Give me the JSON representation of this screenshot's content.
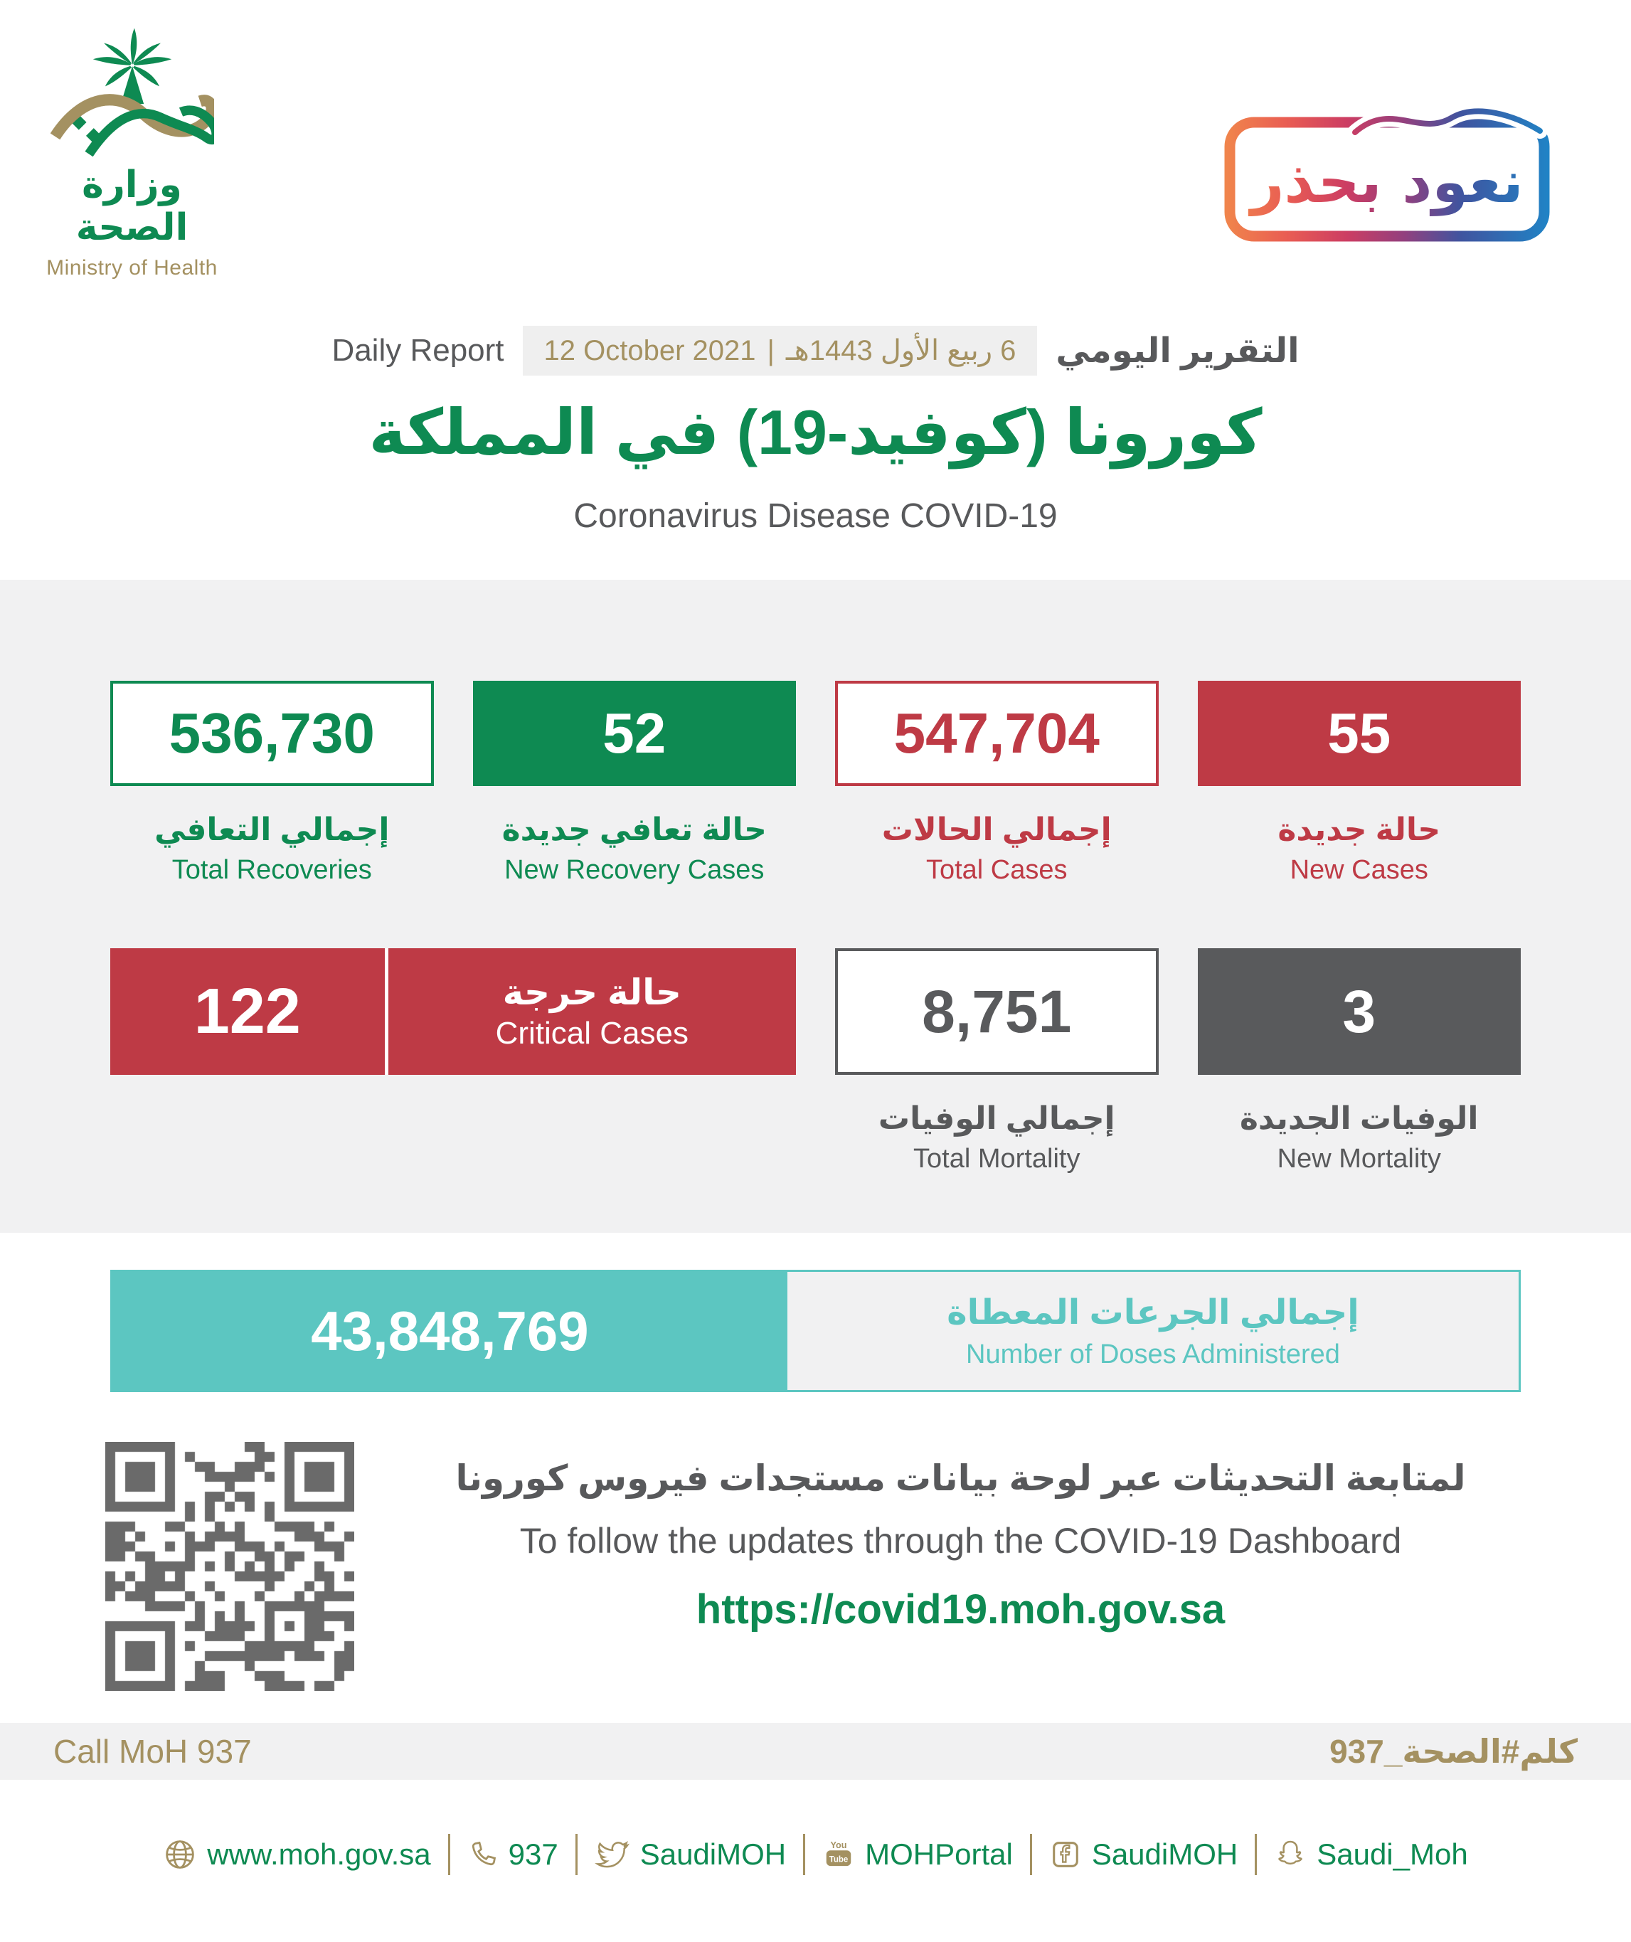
{
  "colors": {
    "green": "#0E8A52",
    "gold": "#A49161",
    "red": "#BE3A45",
    "dark_gray": "#58595B",
    "teal": "#5CC6C1",
    "light_gray": "#F1F1F2",
    "qr_gray": "#6A6A6A"
  },
  "logo": {
    "title_ar": "وزارة الصحة",
    "title_en": "Ministry of Health"
  },
  "badge": {
    "label_ar": "نعود بحذر"
  },
  "header": {
    "report_label_en": "Daily Report",
    "date_en": "12 October 2021",
    "date_separator": "|",
    "date_ar": "6 ربيع الأول 1443هـ",
    "report_label_ar": "التقرير اليومي",
    "title_ar": "كورونا (كوفيد-19) في المملكة",
    "title_en": "Coronavirus Disease COVID-19"
  },
  "stats": {
    "total_recoveries": {
      "value": "536,730",
      "label_ar": "إجمالي التعافي",
      "label_en": "Total Recoveries"
    },
    "new_recoveries": {
      "value": "52",
      "label_ar": "حالة تعافي جديدة",
      "label_en": "New Recovery Cases"
    },
    "total_cases": {
      "value": "547,704",
      "label_ar": "إجمالي الحالات",
      "label_en": "Total Cases"
    },
    "new_cases": {
      "value": "55",
      "label_ar": "حالة جديدة",
      "label_en": "New Cases"
    },
    "critical_cases": {
      "value": "122",
      "label_ar": "حالة حرجة",
      "label_en": "Critical Cases"
    },
    "total_mortality": {
      "value": "8,751",
      "label_ar": "إجمالي الوفيات",
      "label_en": "Total Mortality"
    },
    "new_mortality": {
      "value": "3",
      "label_ar": "الوفيات الجديدة",
      "label_en": "New Mortality"
    },
    "doses": {
      "value": "43,848,769",
      "label_ar": "إجمالي الجرعات المعطاة",
      "label_en": "Number of Doses Administered"
    }
  },
  "dashboard": {
    "note_ar": "لمتابعة التحديثات عبر لوحة بيانات مستجدات فيروس كورونا",
    "note_en": "To follow the updates through the COVID-19 Dashboard",
    "url": "https://covid19.moh.gov.sa"
  },
  "footer": {
    "call_en": "Call MoH 937",
    "hashtag_ar": "كلم#الصحة_937"
  },
  "social": {
    "website": "www.moh.gov.sa",
    "phone": "937",
    "twitter": "SaudiMOH",
    "youtube": "MOHPortal",
    "facebook": "SaudiMOH",
    "snapchat": "Saudi_Moh"
  }
}
